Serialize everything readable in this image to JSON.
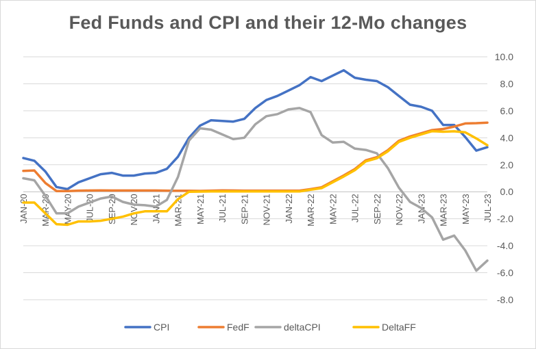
{
  "chart_data": {
    "type": "line",
    "title": "Fed Funds and CPI and their 12-Mo changes",
    "xlabel": "",
    "ylabel": "",
    "ylim": [
      -8,
      10
    ],
    "ytick_step": 2,
    "y_ticks": [
      "10.0",
      "8.0",
      "6.0",
      "4.0",
      "2.0",
      "0.0",
      "-2.0",
      "-4.0",
      "-6.0",
      "-8.0"
    ],
    "y_axis_side": "right",
    "grid": true,
    "legend_position": "bottom",
    "x_tick_labels": [
      "JAN-20",
      "MAR-20",
      "MAY-20",
      "JUL-20",
      "SEP-20",
      "NOV-20",
      "JAN-21",
      "MAR-21",
      "MAY-21",
      "JUL-21",
      "SEP-21",
      "NOV-21",
      "JAN-22",
      "MAR-22",
      "MAY-22",
      "JUL-22",
      "SEP-22",
      "NOV-22",
      "JAN-23",
      "MAR-23",
      "MAY-23",
      "JUL-23"
    ],
    "categories": [
      "Jan-20",
      "Feb-20",
      "Mar-20",
      "Apr-20",
      "May-20",
      "Jun-20",
      "Jul-20",
      "Aug-20",
      "Sep-20",
      "Oct-20",
      "Nov-20",
      "Dec-20",
      "Jan-21",
      "Feb-21",
      "Mar-21",
      "Apr-21",
      "May-21",
      "Jun-21",
      "Jul-21",
      "Aug-21",
      "Sep-21",
      "Oct-21",
      "Nov-21",
      "Dec-21",
      "Jan-22",
      "Feb-22",
      "Mar-22",
      "Apr-22",
      "May-22",
      "Jun-22",
      "Jul-22",
      "Aug-22",
      "Sep-22",
      "Oct-22",
      "Nov-22",
      "Dec-22",
      "Jan-23",
      "Feb-23",
      "Mar-23",
      "Apr-23",
      "May-23",
      "Jun-23",
      "Jul-23"
    ],
    "series": [
      {
        "name": "CPI",
        "color": "#4472c4",
        "values": [
          2.5,
          2.3,
          1.5,
          0.35,
          0.2,
          0.7,
          1.0,
          1.3,
          1.4,
          1.2,
          1.2,
          1.35,
          1.4,
          1.7,
          2.6,
          4.0,
          4.9,
          5.3,
          5.25,
          5.2,
          5.4,
          6.2,
          6.8,
          7.1,
          7.5,
          7.9,
          8.5,
          8.2,
          8.6,
          9.0,
          8.45,
          8.3,
          8.2,
          7.75,
          7.1,
          6.45,
          6.3,
          6.0,
          4.95,
          4.95,
          4.05,
          3.05,
          3.3
        ]
      },
      {
        "name": "FedF",
        "color": "#ed7d31",
        "values": [
          1.55,
          1.58,
          0.65,
          0.05,
          0.05,
          0.08,
          0.09,
          0.1,
          0.09,
          0.09,
          0.09,
          0.09,
          0.09,
          0.08,
          0.07,
          0.07,
          0.06,
          0.08,
          0.1,
          0.09,
          0.08,
          0.08,
          0.08,
          0.08,
          0.08,
          0.08,
          0.2,
          0.33,
          0.77,
          1.21,
          1.68,
          2.33,
          2.56,
          3.08,
          3.78,
          4.1,
          4.33,
          4.57,
          4.65,
          4.83,
          5.06,
          5.08,
          5.12
        ]
      },
      {
        "name": "deltaCPI",
        "color": "#a5a5a5",
        "values": [
          1.0,
          0.85,
          -0.3,
          -1.6,
          -1.6,
          -1.1,
          -0.8,
          -0.5,
          -0.35,
          -0.75,
          -0.95,
          -1.0,
          -1.1,
          -0.6,
          1.1,
          3.8,
          4.7,
          4.6,
          4.25,
          3.9,
          4.0,
          5.0,
          5.6,
          5.75,
          6.1,
          6.2,
          5.9,
          4.2,
          3.65,
          3.7,
          3.2,
          3.1,
          2.85,
          1.75,
          0.3,
          -0.75,
          -1.2,
          -1.9,
          -3.55,
          -3.25,
          -4.35,
          -5.85,
          -5.1
        ]
      },
      {
        "name": "DeltaFF",
        "color": "#ffc000",
        "values": [
          -0.8,
          -0.8,
          -1.6,
          -2.4,
          -2.45,
          -2.2,
          -2.2,
          -2.15,
          -2.0,
          -1.85,
          -1.6,
          -1.45,
          -1.45,
          -1.45,
          -0.55,
          0.0,
          0.01,
          0.02,
          0.02,
          0.02,
          0.02,
          0.02,
          0.02,
          0.02,
          0.02,
          0.02,
          0.15,
          0.27,
          0.7,
          1.13,
          1.6,
          2.25,
          2.48,
          3.0,
          3.7,
          4.0,
          4.25,
          4.49,
          4.45,
          4.48,
          4.4,
          3.95,
          3.45
        ]
      }
    ]
  }
}
